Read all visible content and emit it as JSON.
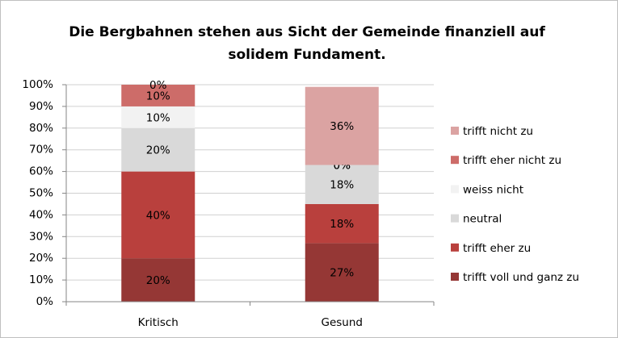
{
  "chart_data": {
    "type": "stacked_bar",
    "title": "Die Bergbahnen stehen aus Sicht der Gemeinde finanziell auf solidem Fundament.",
    "categories": [
      "Kritisch",
      "Gesund"
    ],
    "series": [
      {
        "name": "trifft voll und ganz zu",
        "color": "#953735",
        "values": [
          20,
          27
        ],
        "value_labels": [
          "20%",
          "27%"
        ]
      },
      {
        "name": "trifft eher zu",
        "color": "#b9403d",
        "values": [
          40,
          18
        ],
        "value_labels": [
          "40%",
          "18%"
        ]
      },
      {
        "name": "neutral",
        "color": "#d9d9d9",
        "values": [
          20,
          18
        ],
        "value_labels": [
          "20%",
          "18%"
        ]
      },
      {
        "name": "weiss nicht",
        "color": "#f2f2f2",
        "values": [
          10,
          0
        ],
        "value_labels": [
          "10%",
          "0%"
        ]
      },
      {
        "name": "trifft eher nicht zu",
        "color": "#cd6c69",
        "values": [
          10,
          0
        ],
        "value_labels": [
          "10%",
          "0%"
        ]
      },
      {
        "name": "trifft nicht zu",
        "color": "#dba3a2",
        "values": [
          0,
          36
        ],
        "value_labels": [
          "0%",
          "36%"
        ]
      }
    ],
    "ylim": [
      0,
      100
    ],
    "yticks": [
      {
        "value": 0,
        "label": "0%"
      },
      {
        "value": 10,
        "label": "10%"
      },
      {
        "value": 20,
        "label": "20%"
      },
      {
        "value": 30,
        "label": "30%"
      },
      {
        "value": 40,
        "label": "40%"
      },
      {
        "value": 50,
        "label": "50%"
      },
      {
        "value": 60,
        "label": "60%"
      },
      {
        "value": 70,
        "label": "70%"
      },
      {
        "value": 80,
        "label": "80%"
      },
      {
        "value": 90,
        "label": "90%"
      },
      {
        "value": 100,
        "label": "100%"
      }
    ],
    "grid": true,
    "legend": "right"
  }
}
